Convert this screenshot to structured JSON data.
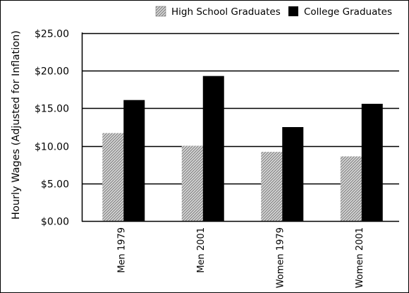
{
  "chart_data": {
    "type": "bar",
    "title": "",
    "xlabel": "",
    "ylabel": "Hourly Wages (Adjusted for Inflation)",
    "ylim": [
      0,
      25
    ],
    "yticks": [
      "$0.00",
      "$5.00",
      "$10.00",
      "$15.00",
      "$20.00",
      "$25.00"
    ],
    "categories": [
      "Men 1979",
      "Men 2001",
      "Women 1979",
      "Women 2001"
    ],
    "series": [
      {
        "name": "High School Graduates",
        "values": [
          11.7,
          10.0,
          9.2,
          8.6
        ],
        "fill": "hatched-gray"
      },
      {
        "name": "College Graduates",
        "values": [
          16.1,
          19.3,
          12.5,
          15.6
        ],
        "fill": "#000000"
      }
    ],
    "grid": "horizontal",
    "legend_position": "top-right"
  }
}
